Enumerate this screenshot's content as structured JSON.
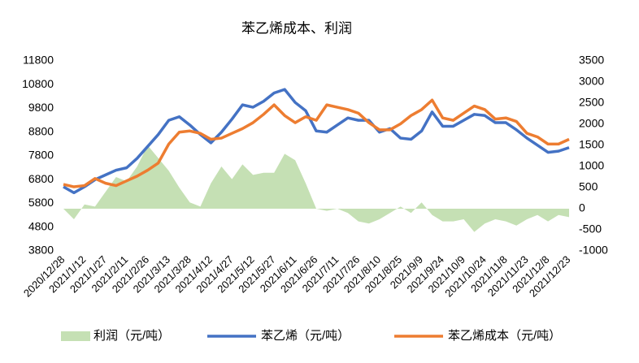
{
  "chart_data": {
    "type": "line",
    "title": "苯乙烯成本、利润",
    "categories": [
      "2020/12/28",
      null,
      "2021/1/12",
      null,
      "2021/1/27",
      null,
      "2021/2/11",
      null,
      "2021/2/26",
      null,
      "2021/3/13",
      null,
      "2021/3/28",
      null,
      "2021/4/12",
      null,
      "2021/4/27",
      null,
      "2021/5/12",
      null,
      "2021/5/27",
      null,
      "2021/6/11",
      null,
      "2021/6/26",
      null,
      "2021/7/11",
      null,
      "2021/7/26",
      null,
      "2021/8/10",
      null,
      "2021/8/25",
      null,
      "2021/9/9",
      null,
      "2021/9/24",
      null,
      "2021/10/9",
      null,
      "2021/10/24",
      null,
      "2021/11/8",
      null,
      "2021/11/23",
      null,
      "2021/12/8",
      null,
      "2021/12/23"
    ],
    "series": [
      {
        "name": "利润（元/吨）",
        "type": "area",
        "axis": "y2",
        "color": "#c5e0b4",
        "values": [
          0,
          -250,
          100,
          50,
          400,
          750,
          650,
          1000,
          1500,
          1200,
          900,
          500,
          150,
          50,
          600,
          1000,
          700,
          1050,
          800,
          850,
          850,
          1300,
          1150,
          600,
          0,
          -50,
          0,
          -100,
          -300,
          -350,
          -250,
          -100,
          50,
          -100,
          150,
          -150,
          -300,
          -300,
          -250,
          -550,
          -350,
          -250,
          -300,
          -400,
          -250,
          -150,
          -300,
          -150,
          -200
        ]
      },
      {
        "name": "苯乙烯（元/吨）",
        "type": "line",
        "color": "#4472c4",
        "values": [
          6500,
          6250,
          6500,
          6800,
          7000,
          7200,
          7300,
          7700,
          8200,
          8700,
          9300,
          9450,
          9100,
          8700,
          8350,
          8800,
          9350,
          9950,
          9850,
          10100,
          10450,
          10600,
          10050,
          9700,
          8850,
          8800,
          9100,
          9400,
          9300,
          9300,
          8800,
          8950,
          8550,
          8500,
          8850,
          9650,
          9050,
          9050,
          9300,
          9550,
          9500,
          9200,
          9200,
          8900,
          8550,
          8250,
          7950,
          8000,
          8150
        ]
      },
      {
        "name": "苯乙烯成本（元/吨）",
        "type": "line",
        "color": "#ed7d31",
        "values": [
          6600,
          6500,
          6550,
          6850,
          6650,
          6550,
          6750,
          6950,
          7200,
          7500,
          8300,
          8800,
          8850,
          8750,
          8500,
          8550,
          8750,
          8950,
          9200,
          9550,
          9950,
          9500,
          9200,
          9450,
          9300,
          9950,
          9850,
          9750,
          9600,
          9200,
          8900,
          8900,
          9150,
          9500,
          9750,
          10150,
          9400,
          9300,
          9600,
          9900,
          9750,
          9350,
          9400,
          9250,
          8750,
          8600,
          8300,
          8300,
          8500
        ]
      }
    ],
    "ylim": [
      3800,
      11800
    ],
    "yticks": [
      3800,
      4800,
      5800,
      6800,
      7800,
      8800,
      9800,
      10800,
      11800
    ],
    "y2lim": [
      -1000,
      3500
    ],
    "y2ticks": [
      -1000,
      -500,
      0,
      500,
      1000,
      1500,
      2000,
      2500,
      3000,
      3500
    ],
    "legend": "bottom"
  }
}
